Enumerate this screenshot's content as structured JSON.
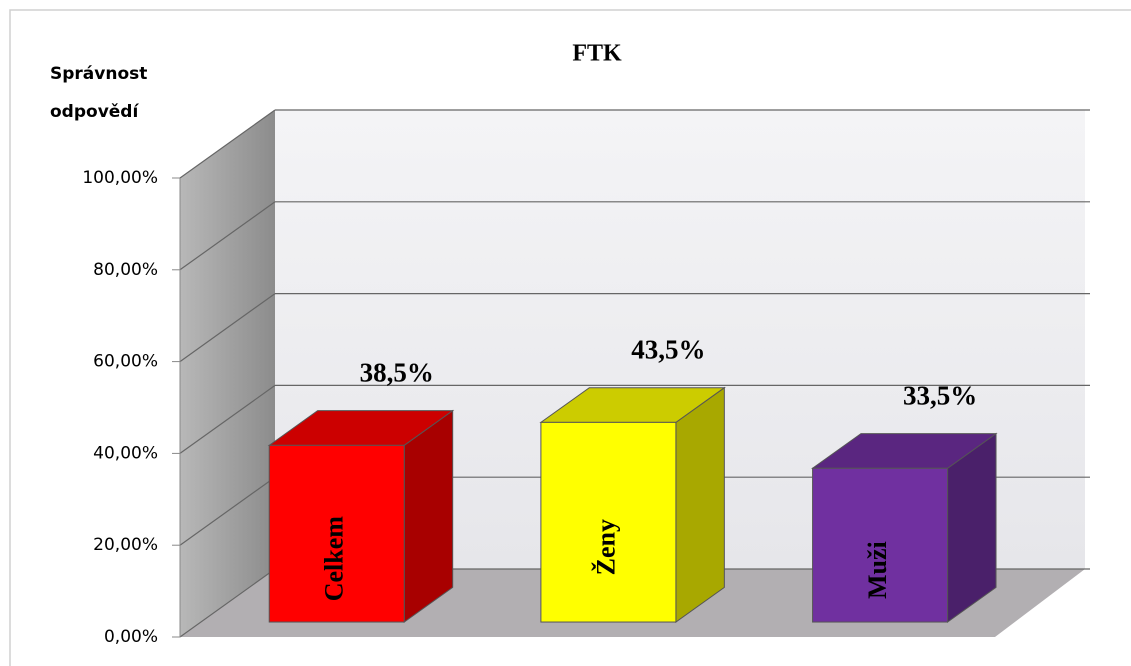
{
  "chart_data": {
    "type": "bar3d",
    "title": "FTK",
    "ylabel": [
      "Správnost",
      "odpovědí"
    ],
    "categories": [
      "Celkem",
      "Ženy",
      "Muži"
    ],
    "values": [
      38.5,
      43.5,
      33.5
    ],
    "value_labels": [
      "38,5%",
      "43,5%",
      "33,5%"
    ],
    "colors": [
      "#ff0000",
      "#ffff00",
      "#7030a0"
    ],
    "ylim": [
      0,
      100
    ],
    "yticks": [
      {
        "value": 0,
        "label": "0,00%"
      },
      {
        "value": 20,
        "label": "20,00%"
      },
      {
        "value": 40,
        "label": "40,00%"
      },
      {
        "value": 60,
        "label": "60,00%"
      },
      {
        "value": 80,
        "label": "80,00%"
      },
      {
        "value": 100,
        "label": "100,00%"
      }
    ],
    "grid": true
  }
}
